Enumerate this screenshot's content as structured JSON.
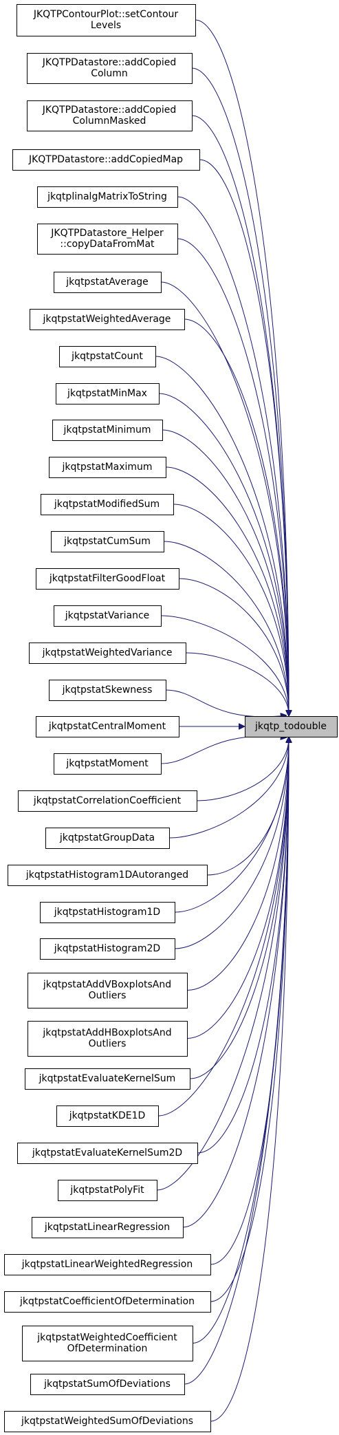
{
  "target": {
    "label": [
      "jkqtp_todouble"
    ]
  },
  "callers": [
    {
      "label": [
        "JKQTPContourPlot::setContour",
        "Levels"
      ]
    },
    {
      "label": [
        "JKQTPDatastore::addCopied",
        "Column"
      ]
    },
    {
      "label": [
        "JKQTPDatastore::addCopied",
        "ColumnMasked"
      ]
    },
    {
      "label": [
        "JKQTPDatastore::addCopiedMap"
      ]
    },
    {
      "label": [
        "jkqtplinalgMatrixToString"
      ]
    },
    {
      "label": [
        "JKQTPDatastore_Helper",
        "::copyDataFromMat"
      ]
    },
    {
      "label": [
        "jkqtpstatAverage"
      ]
    },
    {
      "label": [
        "jkqtpstatWeightedAverage"
      ]
    },
    {
      "label": [
        "jkqtpstatCount"
      ]
    },
    {
      "label": [
        "jkqtpstatMinMax"
      ]
    },
    {
      "label": [
        "jkqtpstatMinimum"
      ]
    },
    {
      "label": [
        "jkqtpstatMaximum"
      ]
    },
    {
      "label": [
        "jkqtpstatModifiedSum"
      ]
    },
    {
      "label": [
        "jkqtpstatCumSum"
      ]
    },
    {
      "label": [
        "jkqtpstatFilterGoodFloat"
      ]
    },
    {
      "label": [
        "jkqtpstatVariance"
      ]
    },
    {
      "label": [
        "jkqtpstatWeightedVariance"
      ]
    },
    {
      "label": [
        "jkqtpstatSkewness"
      ]
    },
    {
      "label": [
        "jkqtpstatCentralMoment"
      ]
    },
    {
      "label": [
        "jkqtpstatMoment"
      ]
    },
    {
      "label": [
        "jkqtpstatCorrelationCoefficient"
      ]
    },
    {
      "label": [
        "jkqtpstatGroupData"
      ]
    },
    {
      "label": [
        "jkqtpstatHistogram1DAutoranged"
      ]
    },
    {
      "label": [
        "jkqtpstatHistogram1D"
      ]
    },
    {
      "label": [
        "jkqtpstatHistogram2D"
      ]
    },
    {
      "label": [
        "jkqtpstatAddVBoxplotsAnd",
        "Outliers"
      ]
    },
    {
      "label": [
        "jkqtpstatAddHBoxplotsAnd",
        "Outliers"
      ]
    },
    {
      "label": [
        "jkqtpstatEvaluateKernelSum"
      ]
    },
    {
      "label": [
        "jkqtpstatKDE1D"
      ]
    },
    {
      "label": [
        "jkqtpstatEvaluateKernelSum2D"
      ]
    },
    {
      "label": [
        "jkqtpstatPolyFit"
      ]
    },
    {
      "label": [
        "jkqtpstatLinearRegression"
      ]
    },
    {
      "label": [
        "jkqtpstatLinearWeightedRegression"
      ]
    },
    {
      "label": [
        "jkqtpstatCoefficientOfDetermination"
      ]
    },
    {
      "label": [
        "jkqtpstatWeightedCoefficient",
        "OfDetermination"
      ]
    },
    {
      "label": [
        "jkqtpstatSumOfDeviations"
      ]
    },
    {
      "label": [
        "jkqtpstatWeightedSumOfDeviations"
      ]
    }
  ],
  "colors": {
    "edge": "#191970",
    "node_border": "#000000",
    "node_fill": "#ffffff",
    "target_fill": "#bfbfbf"
  }
}
